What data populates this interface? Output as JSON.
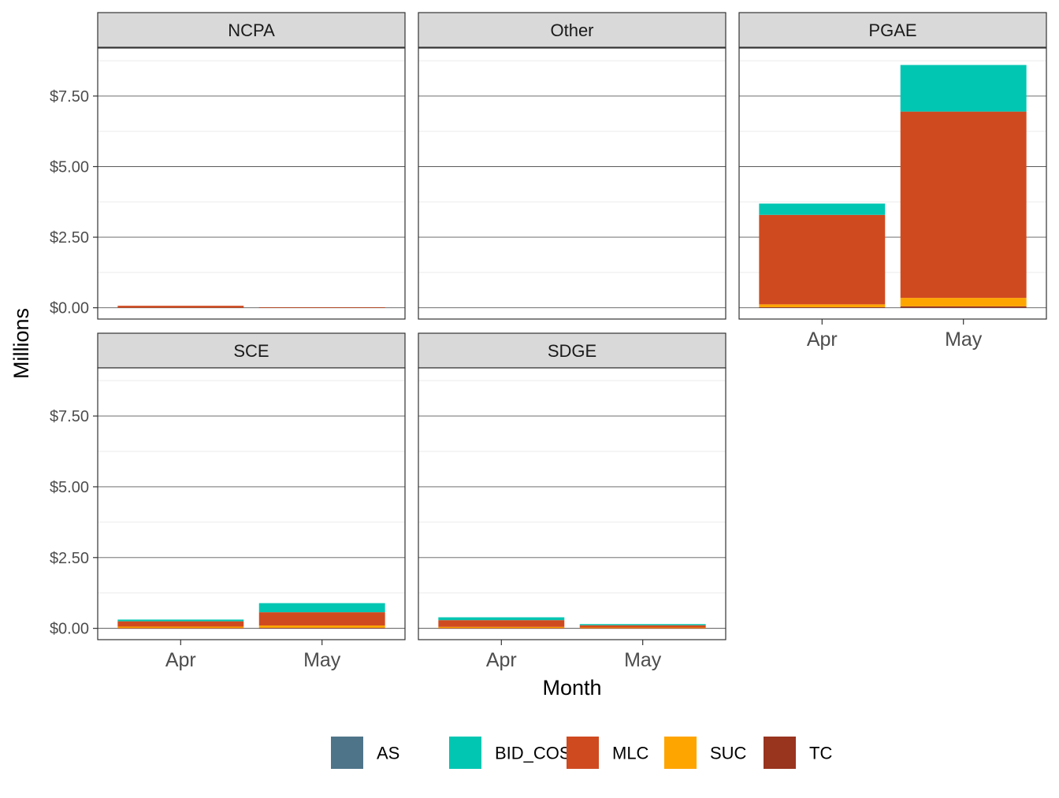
{
  "chart_data": {
    "type": "bar",
    "stacked": true,
    "facet_layout": "3 columns, 2 rows, free x axes",
    "xlabel": "Month",
    "ylabel": "Millions",
    "ylim": [
      -0.4,
      9.2
    ],
    "y_ticks": [
      0,
      2.5,
      5,
      7.5
    ],
    "y_tick_labels": [
      "$0.00",
      "$2.50",
      "$5.00",
      "$7.50"
    ],
    "categories": [
      "Apr",
      "May"
    ],
    "grid": true,
    "legend_position": "bottom",
    "series_order": [
      "AS",
      "BID_COST",
      "MLC",
      "SUC",
      "TC"
    ],
    "legend": [
      {
        "name": "AS",
        "color": "#4e7489"
      },
      {
        "name": "BID_COST",
        "color": "#00c6b2"
      },
      {
        "name": "MLC",
        "color": "#d04a20"
      },
      {
        "name": "SUC",
        "color": "#ffa500"
      },
      {
        "name": "TC",
        "color": "#99341f"
      }
    ],
    "stack_order_bottom_to_top": [
      "TC",
      "SUC",
      "MLC",
      "BID_COST",
      "AS"
    ],
    "facets": [
      {
        "name": "NCPA",
        "series": {
          "AS": [
            0,
            0
          ],
          "BID_COST": [
            0,
            0
          ],
          "MLC": [
            0.07,
            0.02
          ],
          "SUC": [
            0,
            0
          ],
          "TC": [
            0,
            0
          ]
        }
      },
      {
        "name": "Other",
        "series": {
          "AS": [
            0,
            0
          ],
          "BID_COST": [
            0,
            0
          ],
          "MLC": [
            0,
            0
          ],
          "SUC": [
            0,
            0
          ],
          "TC": [
            0,
            0
          ]
        }
      },
      {
        "name": "PGAE",
        "series": {
          "AS": [
            0,
            0
          ],
          "BID_COST": [
            0.4,
            1.65
          ],
          "MLC": [
            3.17,
            6.6
          ],
          "SUC": [
            0.1,
            0.3
          ],
          "TC": [
            0.02,
            0.05
          ]
        }
      },
      {
        "name": "SCE",
        "series": {
          "AS": [
            0,
            0
          ],
          "BID_COST": [
            0.06,
            0.32
          ],
          "MLC": [
            0.19,
            0.47
          ],
          "SUC": [
            0.05,
            0.08
          ],
          "TC": [
            0.01,
            0.02
          ]
        }
      },
      {
        "name": "SDGE",
        "series": {
          "AS": [
            0,
            0
          ],
          "BID_COST": [
            0.1,
            0.04
          ],
          "MLC": [
            0.24,
            0.08
          ],
          "SUC": [
            0.04,
            0.02
          ],
          "TC": [
            0.01,
            0.01
          ]
        }
      }
    ]
  }
}
